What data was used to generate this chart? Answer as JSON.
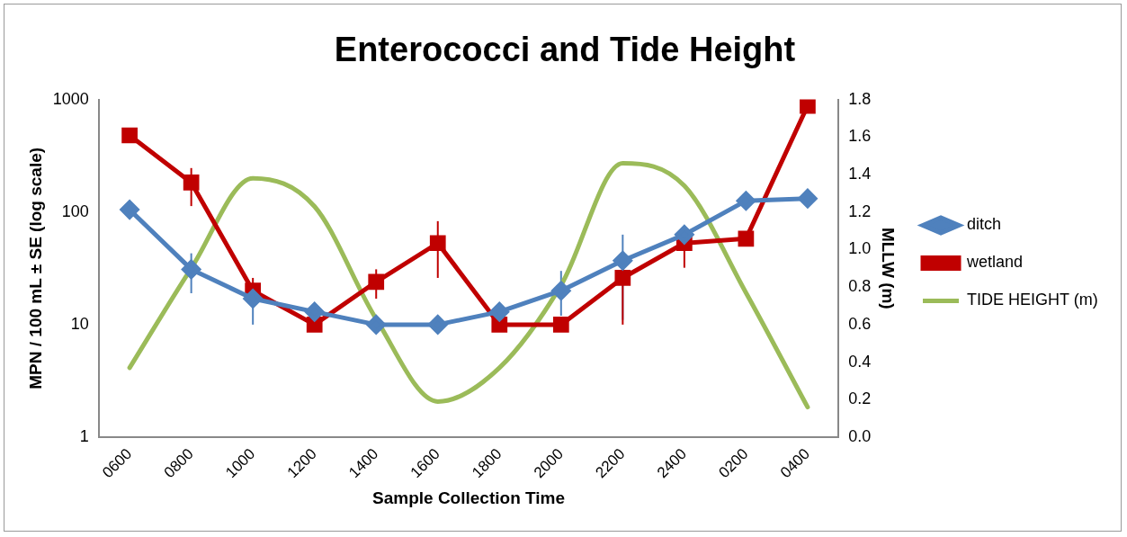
{
  "chart_data": {
    "type": "line",
    "title": "Enterococci and Tide Height",
    "xlabel": "Sample Collection Time",
    "ylabel": "MPN / 100 mL ± SE (log scale)",
    "y2label": "MLLW (m)",
    "categories": [
      "0600",
      "0800",
      "1000",
      "1200",
      "1400",
      "1600",
      "1800",
      "2000",
      "2200",
      "2400",
      "0200",
      "0400"
    ],
    "log": "y",
    "ylim": [
      1,
      1000
    ],
    "yticks": [
      1,
      10,
      100,
      1000
    ],
    "y2lim": [
      0,
      1.8
    ],
    "y2ticks": [
      {
        "value": 0,
        "label": "0.0"
      },
      {
        "value": 0.2,
        "label": "0.2"
      },
      {
        "value": 0.4,
        "label": "0.4"
      },
      {
        "value": 0.6,
        "label": "0.6"
      },
      {
        "value": 0.8,
        "label": "0.8"
      },
      {
        "value": 1,
        "label": "1.0"
      },
      {
        "value": 1.2,
        "label": "1.2"
      },
      {
        "value": 1.4,
        "label": "1.4"
      },
      {
        "value": 1.6,
        "label": "1.6"
      },
      {
        "value": 1.8,
        "label": "1.8"
      }
    ],
    "grid": false,
    "legend": "right",
    "series": [
      {
        "name": "ditch",
        "color": "#4f81bd",
        "marker": "diamond",
        "values": [
          105,
          31,
          17,
          13,
          10,
          10,
          13,
          20,
          37,
          63,
          126,
          132
        ],
        "errors": [
          null,
          [
            19,
            43
          ],
          [
            10,
            22
          ],
          null,
          null,
          null,
          null,
          [
            12,
            30
          ],
          [
            11,
            63
          ],
          null,
          null,
          null
        ]
      },
      {
        "name": "wetland",
        "color": "#c00000",
        "marker": "square",
        "values": [
          480,
          183,
          20,
          10,
          24,
          53,
          10,
          10,
          26,
          53,
          58,
          880
        ],
        "errors": [
          null,
          [
            113,
            246
          ],
          [
            15,
            26
          ],
          null,
          [
            17,
            31
          ],
          [
            26,
            83
          ],
          null,
          null,
          [
            10,
            42
          ],
          [
            32,
            74
          ],
          null,
          null
        ]
      },
      {
        "name": "TIDE HEIGHT (m)",
        "color": "#9bbb59",
        "marker": "none",
        "axis": "y2",
        "values": [
          0.37,
          0.9,
          1.38,
          1.23,
          0.63,
          0.19,
          0.37,
          0.81,
          1.46,
          1.34,
          0.77,
          0.16
        ]
      }
    ]
  }
}
